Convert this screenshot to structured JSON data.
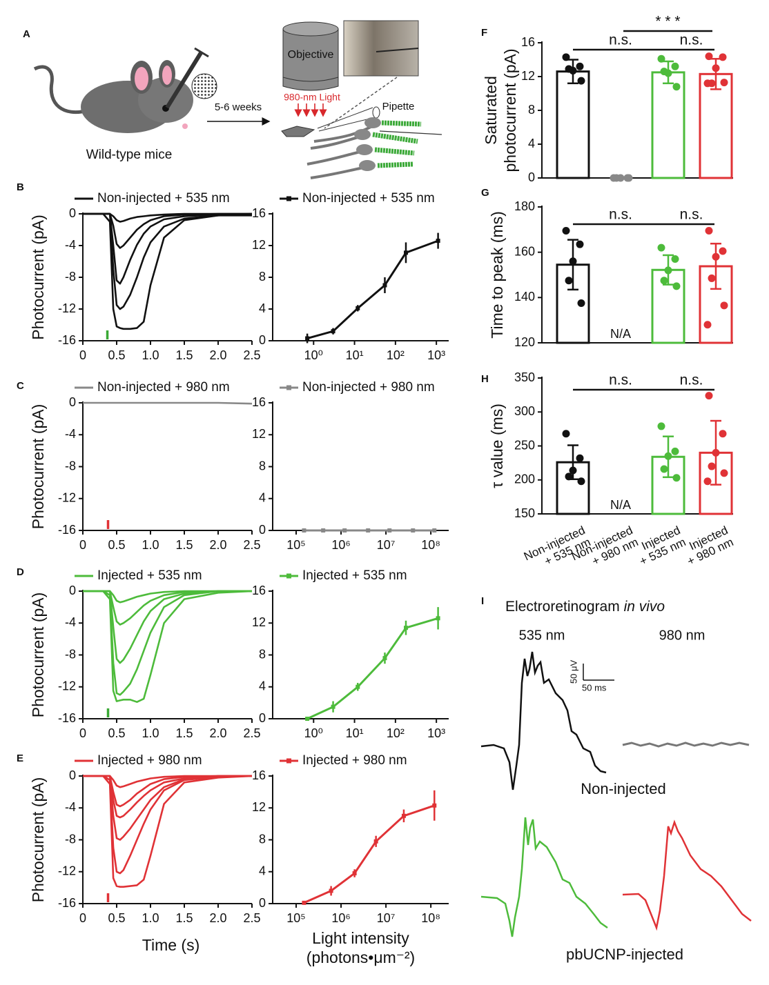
{
  "panel_labels": [
    "A",
    "B",
    "C",
    "D",
    "E",
    "F",
    "G",
    "H",
    "I"
  ],
  "schematic": {
    "mouse_label": "Wild-type mice",
    "arrow_label": "5-6 weeks",
    "objective": "Objective",
    "light": "980-nm Light",
    "pipette": "Pipette"
  },
  "erg": {
    "title": "Electroretinogram",
    "title_italic": "in vivo",
    "col1": "535 nm",
    "col2": "980 nm",
    "scale_y": "50 μV",
    "scale_x": "50 ms",
    "row1": "Non-injected",
    "row2": "pbUCNP-injected"
  },
  "chart_data": [
    {
      "type": "traces",
      "legend": "Non-injected + 535 nm",
      "color": "#111111",
      "stimulus": 0.36,
      "stimulus_color": "#3aa935",
      "ylabel": "Photocurrent (pA)",
      "x": [
        0,
        0.3,
        0.4,
        0.45,
        0.5,
        0.55,
        0.6,
        0.7,
        0.8,
        0.9,
        1.0,
        1.2,
        1.5,
        2.0,
        2.5
      ],
      "traces": [
        [
          0,
          0,
          0,
          -0.3,
          -0.8,
          -1.0,
          -0.9,
          -0.6,
          -0.4,
          -0.3,
          -0.2,
          -0.1,
          0,
          0,
          0
        ],
        [
          0,
          0,
          0,
          -1.5,
          -3.8,
          -4.3,
          -4.0,
          -3.0,
          -2.0,
          -1.3,
          -0.8,
          -0.3,
          -0.1,
          0,
          0
        ],
        [
          0,
          0,
          0,
          -4.0,
          -8.4,
          -8.8,
          -8.0,
          -5.8,
          -3.9,
          -2.5,
          -1.6,
          -0.7,
          -0.3,
          -0.1,
          0
        ],
        [
          0,
          0,
          0,
          -7.0,
          -11.5,
          -12.0,
          -11.7,
          -10.2,
          -8.0,
          -5.5,
          -3.6,
          -1.6,
          -0.6,
          -0.2,
          0
        ],
        [
          0,
          0,
          -1.0,
          -12.0,
          -14.2,
          -14.4,
          -14.5,
          -14.5,
          -14.4,
          -13.6,
          -9.0,
          -3.0,
          -0.8,
          -0.2,
          -0.2
        ]
      ],
      "xlim": [
        0,
        2.5
      ],
      "xticks": [
        0,
        0.5,
        {
          "value": 1,
          "label": "1.0"
        },
        1.5,
        {
          "value": 2,
          "label": "2.0"
        },
        2.5
      ],
      "ylim": [
        -16,
        0
      ],
      "yticks": [
        0,
        -4,
        -8,
        -12,
        -16
      ]
    },
    {
      "type": "line",
      "log_x": true,
      "legend": "Non-injected + 535 nm",
      "color": "#111111",
      "x": [
        0.7,
        3,
        12,
        55,
        180,
        1100
      ],
      "values": [
        0.3,
        1.2,
        4.1,
        7.0,
        11.1,
        12.6
      ],
      "errors": [
        0.6,
        0.4,
        0.4,
        1.0,
        1.3,
        1.0
      ],
      "xlim": [
        0.1,
        2000
      ],
      "xticks": [
        {
          "value": 1,
          "label": "10⁰"
        },
        {
          "value": 10,
          "label": "10¹"
        },
        {
          "value": 100,
          "label": "10²"
        },
        {
          "value": 1000,
          "label": "10³"
        }
      ],
      "ylim": [
        0,
        16
      ],
      "yticks": [
        0,
        4,
        8,
        12,
        16
      ]
    },
    {
      "type": "traces",
      "legend": "Non-injected + 980 nm",
      "color": "#888888",
      "stimulus": 0.37,
      "stimulus_color": "#e03236",
      "ylabel": "Photocurrent (pA)",
      "x": [
        0,
        0.5,
        1.0,
        1.5,
        2.0,
        2.5
      ],
      "traces": [
        [
          0,
          0,
          0,
          0,
          0,
          -0.1
        ]
      ],
      "xlim": [
        0,
        2.5
      ],
      "xticks": [
        0,
        0.5,
        {
          "value": 1,
          "label": "1.0"
        },
        1.5,
        {
          "value": 2,
          "label": "2.0"
        },
        2.5
      ],
      "ylim": [
        -16,
        0
      ],
      "yticks": [
        0,
        -4,
        -8,
        -12,
        -16
      ]
    },
    {
      "type": "line",
      "log_x": true,
      "legend": "Non-injected + 980 nm",
      "color": "#888888",
      "x": [
        150000,
        400000,
        1200000,
        4000000,
        12000000,
        40000000,
        120000000
      ],
      "values": [
        0,
        0,
        0,
        0,
        0,
        0,
        0
      ],
      "xlim": [
        30000,
        250000000
      ],
      "xticks": [
        {
          "value": 100000,
          "label": "10⁵"
        },
        {
          "value": 1000000,
          "label": "10⁶"
        },
        {
          "value": 10000000,
          "label": "10⁷"
        },
        {
          "value": 100000000,
          "label": "10⁸"
        }
      ],
      "ylim": [
        0,
        16
      ],
      "yticks": [
        0,
        4,
        8,
        12,
        16
      ]
    },
    {
      "type": "traces",
      "legend": "Injected + 535 nm",
      "color": "#4dbb3b",
      "stimulus": 0.37,
      "stimulus_color": "#3aa935",
      "ylabel": "Photocurrent (pA)",
      "x": [
        0,
        0.3,
        0.4,
        0.45,
        0.5,
        0.55,
        0.6,
        0.7,
        0.8,
        0.9,
        1.0,
        1.2,
        1.5,
        2.0,
        2.5
      ],
      "traces": [
        [
          0,
          0,
          0,
          -0.5,
          -1.2,
          -1.4,
          -1.3,
          -1.0,
          -0.7,
          -0.5,
          -0.3,
          -0.1,
          0,
          0,
          0
        ],
        [
          0,
          0,
          0,
          -2.0,
          -3.8,
          -4.2,
          -4.0,
          -3.4,
          -2.6,
          -1.8,
          -1.2,
          -0.5,
          -0.1,
          0,
          0
        ],
        [
          0,
          0,
          0,
          -4.5,
          -8.5,
          -9.0,
          -8.6,
          -7.2,
          -5.5,
          -3.8,
          -2.5,
          -1.0,
          -0.3,
          0,
          0
        ],
        [
          0,
          0,
          -0.5,
          -9.0,
          -12.8,
          -13.0,
          -12.6,
          -11.6,
          -9.8,
          -7.5,
          -5.2,
          -2.0,
          -0.5,
          0,
          0
        ],
        [
          0,
          0,
          -1.0,
          -12.5,
          -13.8,
          -13.7,
          -13.6,
          -13.6,
          -13.9,
          -13.5,
          -10.5,
          -4.0,
          -1.0,
          -0.2,
          0
        ]
      ],
      "xlim": [
        0,
        2.5
      ],
      "xticks": [
        0,
        0.5,
        {
          "value": 1,
          "label": "1.0"
        },
        1.5,
        {
          "value": 2,
          "label": "2.0"
        },
        2.5
      ],
      "ylim": [
        -16,
        0
      ],
      "yticks": [
        0,
        -4,
        -8,
        -12,
        -16
      ]
    },
    {
      "type": "line",
      "log_x": true,
      "legend": "Injected + 535 nm",
      "color": "#4dbb3b",
      "x": [
        0.7,
        3,
        12,
        55,
        180,
        1100
      ],
      "values": [
        0,
        1.5,
        4.0,
        7.6,
        11.4,
        12.6
      ],
      "errors": [
        0.1,
        0.7,
        0.5,
        0.7,
        0.9,
        1.4
      ],
      "xlim": [
        0.1,
        2000
      ],
      "xticks": [
        {
          "value": 1,
          "label": "10⁰"
        },
        {
          "value": 10,
          "label": "10¹"
        },
        {
          "value": 100,
          "label": "10²"
        },
        {
          "value": 1000,
          "label": "10³"
        }
      ],
      "ylim": [
        0,
        16
      ],
      "yticks": [
        0,
        4,
        8,
        12,
        16
      ]
    },
    {
      "type": "traces",
      "legend": "Injected + 980 nm",
      "color": "#e03236",
      "stimulus": 0.37,
      "stimulus_color": "#e03236",
      "ylabel": "Photocurrent (pA)",
      "xlabel": "Time (s)",
      "x": [
        0,
        0.3,
        0.4,
        0.45,
        0.5,
        0.55,
        0.6,
        0.7,
        0.8,
        0.9,
        1.0,
        1.2,
        1.5,
        2.0,
        2.5
      ],
      "traces": [
        [
          0,
          0,
          0,
          -0.5,
          -1.2,
          -1.4,
          -1.3,
          -1.0,
          -0.7,
          -0.5,
          -0.3,
          -0.1,
          0,
          0,
          0
        ],
        [
          0,
          0,
          0,
          -2.0,
          -3.6,
          -3.8,
          -3.6,
          -3.0,
          -2.2,
          -1.6,
          -1.0,
          -0.4,
          -0.1,
          0,
          0
        ],
        [
          0,
          0,
          0,
          -3.0,
          -5.0,
          -5.2,
          -5.0,
          -4.2,
          -3.3,
          -2.5,
          -1.8,
          -0.8,
          -0.3,
          0,
          0
        ],
        [
          0,
          0,
          0,
          -5.0,
          -7.8,
          -8.0,
          -7.6,
          -6.6,
          -5.4,
          -4.2,
          -3.0,
          -1.4,
          -0.4,
          0,
          0
        ],
        [
          0,
          0,
          -0.5,
          -9.0,
          -12.0,
          -12.2,
          -11.8,
          -10.0,
          -8.0,
          -6.0,
          -4.2,
          -1.8,
          -0.5,
          -0.1,
          0
        ],
        [
          0,
          0,
          -1.0,
          -12.8,
          -13.8,
          -13.9,
          -13.9,
          -13.8,
          -13.7,
          -13.0,
          -10.0,
          -3.5,
          -0.8,
          -0.2,
          0
        ]
      ],
      "xlim": [
        0,
        2.5
      ],
      "xticks": [
        0,
        0.5,
        {
          "value": 1,
          "label": "1.0"
        },
        1.5,
        {
          "value": 2,
          "label": "2.0"
        },
        2.5
      ],
      "ylim": [
        -16,
        0
      ],
      "yticks": [
        0,
        -4,
        -8,
        -12,
        -16
      ]
    },
    {
      "type": "line",
      "log_x": true,
      "legend": "Injected + 980 nm",
      "color": "#e03236",
      "xlabel": [
        "Light intensity",
        "(photons•μm⁻²)"
      ],
      "x": [
        150000,
        600000,
        2000000,
        6000000,
        25000000,
        120000000
      ],
      "values": [
        0.1,
        1.6,
        3.8,
        7.8,
        11.0,
        12.3
      ],
      "errors": [
        0.1,
        0.6,
        0.5,
        0.7,
        0.8,
        1.9
      ],
      "xlim": [
        30000,
        250000000
      ],
      "xticks": [
        {
          "value": 100000,
          "label": "10⁵"
        },
        {
          "value": 1000000,
          "label": "10⁶"
        },
        {
          "value": 10000000,
          "label": "10⁷"
        },
        {
          "value": 100000000,
          "label": "10⁸"
        }
      ],
      "ylim": [
        0,
        16
      ],
      "yticks": [
        0,
        4,
        8,
        12,
        16
      ]
    },
    {
      "type": "bar",
      "ylabel": [
        "Saturated",
        "photocurrent (pA)"
      ],
      "colors": [
        "#111111",
        "#888888",
        "#4dbb3b",
        "#e03236"
      ],
      "values": [
        12.6,
        0,
        12.5,
        12.3
      ],
      "errors": [
        1.4,
        0,
        1.3,
        1.8
      ],
      "points": [
        [
          14.3,
          13.2,
          12.7,
          12.9,
          11.5
        ],
        [
          0,
          0,
          0,
          0,
          0
        ],
        [
          14.1,
          13.2,
          12.4,
          12.6,
          10.8
        ],
        [
          14.4,
          14.3,
          13.0,
          11.2,
          11.3,
          11.2
        ]
      ],
      "annotations": [
        "n.s.",
        "* * *",
        "n.s."
      ],
      "ylim": [
        0,
        16
      ],
      "yticks": [
        0,
        4,
        8,
        12,
        16
      ]
    },
    {
      "type": "bar",
      "ylabel": "Time to peak (ms)",
      "colors": [
        "#111111",
        "#888888",
        "#4dbb3b",
        "#e03236"
      ],
      "values": [
        154.5,
        null,
        152.2,
        153.8
      ],
      "errors": [
        11,
        null,
        6.5,
        10
      ],
      "na_label": "N/A",
      "points": [
        [
          169.5,
          163.5,
          156,
          147.5,
          137.5
        ],
        [],
        [
          162,
          157,
          152,
          147.5,
          145
        ],
        [
          169.5,
          160.5,
          158,
          148.5,
          136.5,
          128
        ]
      ],
      "annotations": [
        "n.s.",
        "n.s."
      ],
      "ylim": [
        120,
        180
      ],
      "yticks": [
        120,
        140,
        160,
        180
      ]
    },
    {
      "type": "bar",
      "ylabel": "τ value (ms)",
      "colors": [
        "#111111",
        "#888888",
        "#4dbb3b",
        "#e03236"
      ],
      "categories": [
        "Non-injected\n+ 535 nm",
        "Non-injected\n+ 980 nm",
        "Injected\n+ 535 nm",
        "Injected\n+ 980 nm"
      ],
      "values": [
        226,
        null,
        234,
        240
      ],
      "errors": [
        25,
        null,
        30,
        47
      ],
      "na_label": "N/A",
      "points": [
        [
          268,
          232,
          214,
          205,
          198
        ],
        [],
        [
          279,
          242,
          235,
          216,
          203
        ],
        [
          324,
          268,
          240,
          220,
          210,
          198
        ]
      ],
      "annotations": [
        "n.s.",
        "n.s."
      ],
      "ylim": [
        150,
        350
      ],
      "yticks": [
        150,
        200,
        250,
        300,
        350
      ]
    }
  ]
}
